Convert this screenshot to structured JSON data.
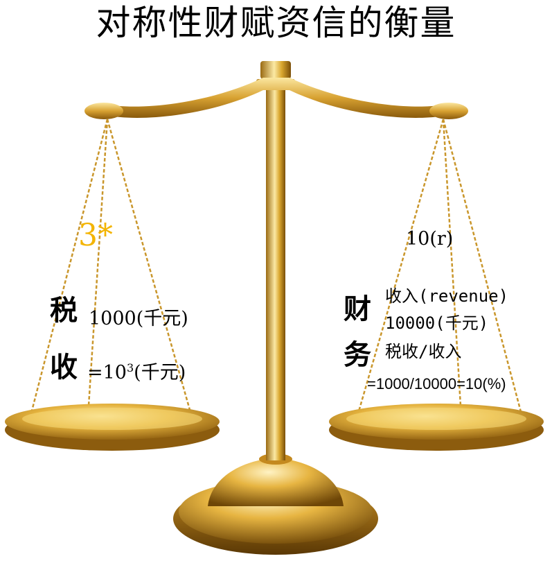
{
  "title": "对称性财赋资信的衡量",
  "left_pan": {
    "marker": "3*",
    "tax_char": "税",
    "tax_value": "1000(千元)",
    "collect_char": "收",
    "collect_value_prefix": "=10",
    "collect_value_exp": "3",
    "collect_value_suffix": "(千元)"
  },
  "right_pan": {
    "rate_label": "10(r)",
    "finance_char_1": "财",
    "finance_char_2": "务",
    "revenue_label": "收入(revenue)",
    "revenue_value": "10000(千元)",
    "ratio_label": "税收/收入",
    "ratio_formula": "=1000/10000=10(%)"
  },
  "colors": {
    "gold_light": "#f7e08a",
    "gold_mid": "#d9a62e",
    "gold_dark": "#8a5a0c",
    "marker": "#f3b400"
  }
}
